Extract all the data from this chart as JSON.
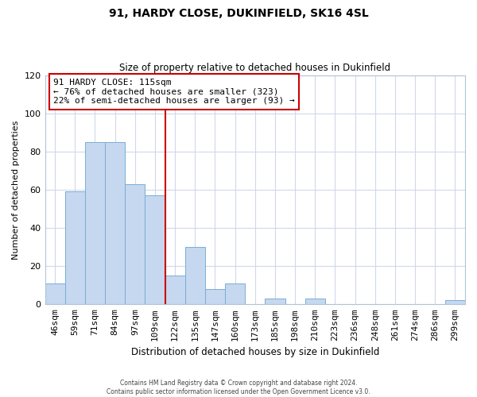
{
  "title": "91, HARDY CLOSE, DUKINFIELD, SK16 4SL",
  "subtitle": "Size of property relative to detached houses in Dukinfield",
  "xlabel": "Distribution of detached houses by size in Dukinfield",
  "ylabel": "Number of detached properties",
  "bar_labels": [
    "46sqm",
    "59sqm",
    "71sqm",
    "84sqm",
    "97sqm",
    "109sqm",
    "122sqm",
    "135sqm",
    "147sqm",
    "160sqm",
    "173sqm",
    "185sqm",
    "198sqm",
    "210sqm",
    "223sqm",
    "236sqm",
    "248sqm",
    "261sqm",
    "274sqm",
    "286sqm",
    "299sqm"
  ],
  "bar_values": [
    11,
    59,
    85,
    85,
    63,
    57,
    15,
    30,
    8,
    11,
    0,
    3,
    0,
    3,
    0,
    0,
    0,
    0,
    0,
    0,
    2
  ],
  "bar_color": "#c5d8ef",
  "bar_edge_color": "#7aadd4",
  "reference_line_index": 6,
  "reference_line_color": "#cc0000",
  "annotation_title": "91 HARDY CLOSE: 115sqm",
  "annotation_line1": "← 76% of detached houses are smaller (323)",
  "annotation_line2": "22% of semi-detached houses are larger (93) →",
  "annotation_box_color": "#cc0000",
  "ylim": [
    0,
    120
  ],
  "yticks": [
    0,
    20,
    40,
    60,
    80,
    100,
    120
  ],
  "footer_line1": "Contains HM Land Registry data © Crown copyright and database right 2024.",
  "footer_line2": "Contains public sector information licensed under the Open Government Licence v3.0.",
  "background_color": "#ffffff",
  "grid_color": "#d0d8e8"
}
